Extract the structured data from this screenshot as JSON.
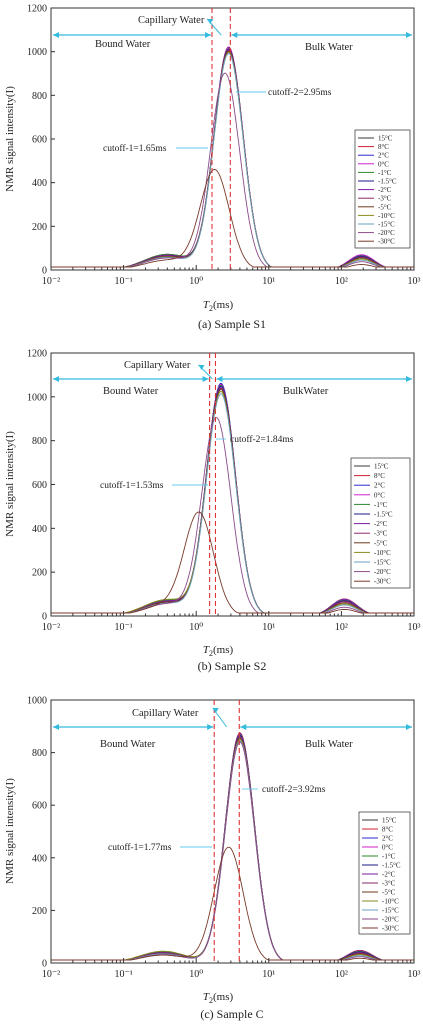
{
  "figure": {
    "panels": [
      {
        "caption": "(a) Sample S1",
        "ylabel": "NMR signal intensity(I)",
        "xlabel_main": "T",
        "xlabel_sub": "2",
        "xlabel_unit": "(ms)",
        "region_bound": "Bound Water",
        "region_capillary": "Capillary Water",
        "region_bulk": "Bulk Water",
        "cutoff1_label": "cutoff-1=1.65ms",
        "cutoff2_label": "cutoff-2=2.95ms"
      },
      {
        "caption": "(b) Sample S2",
        "ylabel": "NMR signal intensity(I)",
        "xlabel_main": "T",
        "xlabel_sub": "2",
        "xlabel_unit": "(ms)",
        "region_bound": "Bound Water",
        "region_capillary": "Capillary Water",
        "region_bulk": "BulkWater",
        "cutoff1_label": "cutoff-1=1.53ms",
        "cutoff2_label": "cutoff-2=1.84ms"
      },
      {
        "caption": "(c) Sample C",
        "ylabel": "NMR signal intensity(I)",
        "xlabel_main": "T",
        "xlabel_sub": "2",
        "xlabel_unit": "(ms)",
        "region_bound": "Bound Water",
        "region_capillary": "Capillary Water",
        "region_bulk": "Bulk Water",
        "cutoff1_label": "cutoff-1=1.77ms",
        "cutoff2_label": "cutoff-2=3.92ms"
      }
    ],
    "colors": {
      "region_arrow": "#33bbdd",
      "cutoff_line": "#dd3333",
      "annotation_line": "#66ccee"
    }
  },
  "chart_data": [
    {
      "type": "line",
      "xscale": "log",
      "xlim": [
        0.01,
        1000
      ],
      "ylim": [
        0,
        1200
      ],
      "x_ticks": [
        0.01,
        0.1,
        1,
        10,
        100,
        1000
      ],
      "x_tick_labels": [
        "10-2",
        "10-1",
        "100",
        "101",
        "102",
        "103"
      ],
      "y_ticks": [
        0,
        200,
        400,
        600,
        800,
        1000,
        1200
      ],
      "cutoffs_ms": [
        1.65,
        2.95
      ],
      "legend_position": "right",
      "series": [
        {
          "name": "15°C",
          "color": "#3a3a3a",
          "peaks": [
            [
              0.4,
              70
            ],
            [
              2.8,
              1015
            ],
            [
              190,
              65
            ]
          ]
        },
        {
          "name": "8°C",
          "color": "#d02030",
          "peaks": [
            [
              0.4,
              72
            ],
            [
              2.8,
              1020
            ],
            [
              190,
              68
            ]
          ]
        },
        {
          "name": "2°C",
          "color": "#2a2ad0",
          "peaks": [
            [
              0.4,
              68
            ],
            [
              2.8,
              1018
            ],
            [
              190,
              66
            ]
          ]
        },
        {
          "name": "0°C",
          "color": "#d020d0",
          "peaks": [
            [
              0.4,
              70
            ],
            [
              2.8,
              1016
            ],
            [
              190,
              70
            ]
          ]
        },
        {
          "name": "-1°C",
          "color": "#2a8a2a",
          "peaks": [
            [
              0.4,
              72
            ],
            [
              2.8,
              1012
            ],
            [
              190,
              64
            ]
          ]
        },
        {
          "name": "-1.5°C",
          "color": "#1a1a8a",
          "peaks": [
            [
              0.4,
              66
            ],
            [
              2.8,
              1010
            ],
            [
              190,
              62
            ]
          ]
        },
        {
          "name": "-2°C",
          "color": "#7a1aa0",
          "peaks": [
            [
              0.4,
              68
            ],
            [
              2.8,
              1008
            ],
            [
              190,
              60
            ]
          ]
        },
        {
          "name": "-3°C",
          "color": "#8a2a6a",
          "peaks": [
            [
              0.4,
              64
            ],
            [
              2.8,
              1005
            ],
            [
              190,
              58
            ]
          ]
        },
        {
          "name": "-5°C",
          "color": "#6a3a1a",
          "peaks": [
            [
              0.4,
              62
            ],
            [
              2.8,
              1000
            ],
            [
              190,
              55
            ]
          ]
        },
        {
          "name": "-10°C",
          "color": "#8a8a20",
          "peaks": [
            [
              0.4,
              60
            ],
            [
              2.8,
              995
            ],
            [
              190,
              50
            ]
          ]
        },
        {
          "name": "-15°C",
          "color": "#6aa0c0",
          "peaks": [
            [
              0.4,
              58
            ],
            [
              2.8,
              990
            ],
            [
              190,
              45
            ]
          ]
        },
        {
          "name": "-20°C",
          "color": "#8a4a8a",
          "peaks": [
            [
              0.4,
              55
            ],
            [
              2.5,
              900
            ],
            [
              190,
              38
            ]
          ]
        },
        {
          "name": "-30°C",
          "color": "#7a3a2a",
          "peaks": [
            [
              0.4,
              45
            ],
            [
              1.8,
              455
            ],
            [
              190,
              25
            ]
          ]
        }
      ]
    },
    {
      "type": "line",
      "xscale": "log",
      "xlim": [
        0.01,
        1000
      ],
      "ylim": [
        0,
        1200
      ],
      "x_ticks": [
        0.01,
        0.1,
        1,
        10,
        100,
        1000
      ],
      "x_tick_labels": [
        "10-2",
        "10-1",
        "100",
        "101",
        "102",
        "103"
      ],
      "y_ticks": [
        0,
        200,
        400,
        600,
        800,
        1000,
        1200
      ],
      "cutoffs_ms": [
        1.53,
        1.84
      ],
      "legend_position": "right",
      "series": [
        {
          "name": "15°C",
          "color": "#3a3a3a",
          "peaks": [
            [
              0.4,
              70
            ],
            [
              2.2,
              1050
            ],
            [
              110,
              75
            ]
          ]
        },
        {
          "name": "8°C",
          "color": "#d02030",
          "peaks": [
            [
              0.4,
              72
            ],
            [
              2.2,
              1055
            ],
            [
              110,
              78
            ]
          ]
        },
        {
          "name": "2°C",
          "color": "#2a2ad0",
          "peaks": [
            [
              0.4,
              68
            ],
            [
              2.2,
              1058
            ],
            [
              110,
              76
            ]
          ]
        },
        {
          "name": "0°C",
          "color": "#d020d0",
          "peaks": [
            [
              0.4,
              70
            ],
            [
              2.2,
              1052
            ],
            [
              110,
              74
            ]
          ]
        },
        {
          "name": "-1°C",
          "color": "#2a8a2a",
          "peaks": [
            [
              0.4,
              72
            ],
            [
              2.2,
              1048
            ],
            [
              110,
              72
            ]
          ]
        },
        {
          "name": "-1.5°C",
          "color": "#1a1a8a",
          "peaks": [
            [
              0.4,
              66
            ],
            [
              2.2,
              1045
            ],
            [
              110,
              70
            ]
          ]
        },
        {
          "name": "-2°C",
          "color": "#7a1aa0",
          "peaks": [
            [
              0.4,
              68
            ],
            [
              2.2,
              1040
            ],
            [
              110,
              68
            ]
          ]
        },
        {
          "name": "-3°C",
          "color": "#8a2a6a",
          "peaks": [
            [
              0.4,
              64
            ],
            [
              2.2,
              1035
            ],
            [
              110,
              65
            ]
          ]
        },
        {
          "name": "-5°C",
          "color": "#6a3a1a",
          "peaks": [
            [
              0.4,
              62
            ],
            [
              2.2,
              1030
            ],
            [
              110,
              60
            ]
          ]
        },
        {
          "name": "-10°C",
          "color": "#8a8a20",
          "peaks": [
            [
              0.4,
              75
            ],
            [
              2.2,
              1020
            ],
            [
              110,
              55
            ]
          ]
        },
        {
          "name": "-15°C",
          "color": "#6aa0c0",
          "peaks": [
            [
              0.4,
              58
            ],
            [
              2.2,
              1010
            ],
            [
              110,
              50
            ]
          ]
        },
        {
          "name": "-20°C",
          "color": "#8a4a8a",
          "peaks": [
            [
              0.4,
              55
            ],
            [
              1.9,
              900
            ],
            [
              110,
              40
            ]
          ]
        },
        {
          "name": "-30°C",
          "color": "#7a3a2a",
          "peaks": [
            [
              0.4,
              50
            ],
            [
              1.1,
              455
            ],
            [
              110,
              30
            ]
          ]
        }
      ]
    },
    {
      "type": "line",
      "xscale": "log",
      "xlim": [
        0.01,
        1000
      ],
      "ylim": [
        0,
        1000
      ],
      "x_ticks": [
        0.01,
        0.1,
        1,
        10,
        100,
        1000
      ],
      "x_tick_labels": [
        "10-2",
        "10-1",
        "100",
        "101",
        "102",
        "103"
      ],
      "y_ticks": [
        0,
        200,
        400,
        600,
        800,
        1000
      ],
      "cutoffs_ms": [
        1.77,
        3.92
      ],
      "legend_position": "right",
      "series": [
        {
          "name": "15°C",
          "color": "#3a3a3a",
          "peaks": [
            [
              0.35,
              40
            ],
            [
              4.0,
              870
            ],
            [
              180,
              45
            ]
          ]
        },
        {
          "name": "8°C",
          "color": "#d02030",
          "peaks": [
            [
              0.35,
              42
            ],
            [
              4.0,
              875
            ],
            [
              180,
              48
            ]
          ]
        },
        {
          "name": "2°C",
          "color": "#2a2ad0",
          "peaks": [
            [
              0.35,
              40
            ],
            [
              4.0,
              872
            ],
            [
              180,
              46
            ]
          ]
        },
        {
          "name": "0°C",
          "color": "#d020d0",
          "peaks": [
            [
              0.35,
              41
            ],
            [
              4.0,
              870
            ],
            [
              180,
              45
            ]
          ]
        },
        {
          "name": "-1°C",
          "color": "#2a8a2a",
          "peaks": [
            [
              0.35,
              42
            ],
            [
              4.0,
              868
            ],
            [
              180,
              44
            ]
          ]
        },
        {
          "name": "-1.5°C",
          "color": "#1a1a8a",
          "peaks": [
            [
              0.35,
              38
            ],
            [
              4.0,
              865
            ],
            [
              180,
              42
            ]
          ]
        },
        {
          "name": "-2°C",
          "color": "#7a1aa0",
          "peaks": [
            [
              0.35,
              40
            ],
            [
              4.0,
              862
            ],
            [
              180,
              40
            ]
          ]
        },
        {
          "name": "-3°C",
          "color": "#8a2a6a",
          "peaks": [
            [
              0.35,
              38
            ],
            [
              4.0,
              860
            ],
            [
              180,
              38
            ]
          ]
        },
        {
          "name": "-5°C",
          "color": "#6a3a1a",
          "peaks": [
            [
              0.35,
              36
            ],
            [
              4.0,
              855
            ],
            [
              180,
              35
            ]
          ]
        },
        {
          "name": "-10°C",
          "color": "#8a8a20",
          "peaks": [
            [
              0.35,
              45
            ],
            [
              4.0,
              850
            ],
            [
              180,
              32
            ]
          ]
        },
        {
          "name": "-15°C",
          "color": "#6aa0c0",
          "peaks": [
            [
              0.35,
              35
            ],
            [
              4.0,
              845
            ],
            [
              180,
              28
            ]
          ]
        },
        {
          "name": "-20°C",
          "color": "#8a4a8a",
          "peaks": [
            [
              0.35,
              32
            ],
            [
              4.0,
              840
            ],
            [
              180,
              24
            ]
          ]
        },
        {
          "name": "-30°C",
          "color": "#7a3a2a",
          "peaks": [
            [
              0.35,
              30
            ],
            [
              2.8,
              440
            ],
            [
              180,
              18
            ]
          ]
        }
      ]
    }
  ]
}
